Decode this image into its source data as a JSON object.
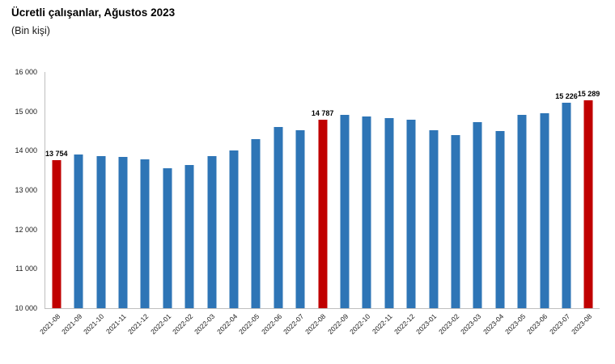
{
  "title": "Ücretli çalışanlar, Ağustos 2023",
  "subtitle": "(Bin kişi)",
  "colors": {
    "bar_blue": "#2e75b6",
    "bar_red": "#c00000",
    "axis_line": "#bfbfbf",
    "tick_text": "#1a1a1a"
  },
  "chart_data": {
    "type": "bar",
    "title": "Ücretli çalışanlar, Ağustos 2023",
    "ylabel": "(Bin kişi)",
    "ylim": [
      10000,
      16000
    ],
    "grid": false,
    "legend": "none",
    "yticks_top_to_bottom": [
      "16 000",
      "15 000",
      "14 000",
      "13 000",
      "12 000",
      "11 000",
      "10 000"
    ],
    "categories": [
      "2021-08",
      "2021-09",
      "2021-10",
      "2021-11",
      "2021-12",
      "2022-01",
      "2022-02",
      "2022-03",
      "2022-04",
      "2022-05",
      "2022-06",
      "2022-07",
      "2022-08",
      "2022-09",
      "2022-10",
      "2022-11",
      "2022-12",
      "2023-01",
      "2023-02",
      "2023-03",
      "2023-04",
      "2023-05",
      "2023-06",
      "2023-07",
      "2023-08"
    ],
    "values": [
      13754,
      13900,
      13860,
      13850,
      13780,
      13560,
      13630,
      13870,
      14000,
      14300,
      14600,
      14520,
      14787,
      14920,
      14880,
      14830,
      14790,
      14520,
      14400,
      14730,
      14510,
      14910,
      14960,
      15226,
      15289
    ],
    "highlighted_indices": [
      0,
      12,
      24
    ],
    "data_labels": {
      "0": "13 754",
      "12": "14 787",
      "23": "15 226",
      "24": "15 289"
    }
  }
}
